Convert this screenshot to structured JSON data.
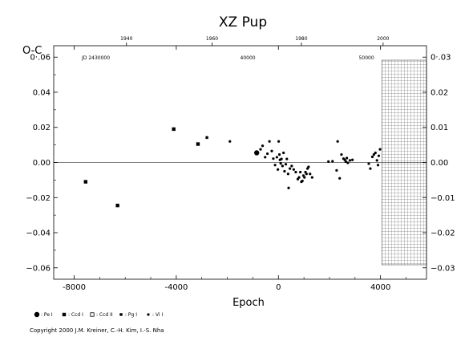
{
  "chart_data": {
    "type": "scatter",
    "title": "XZ  Pup",
    "xlabel": "Epoch",
    "ylabel": "O-C",
    "xlim": [
      -8800,
      5800
    ],
    "ylim": [
      -0.0665,
      0.0665
    ],
    "x_ticks": [
      -8000,
      -4000,
      0,
      4000
    ],
    "x_tick_labels": [
      "-8000",
      "-4000",
      "0",
      "4000"
    ],
    "y_ticks": [
      -0.06,
      -0.04,
      -0.02,
      0.0,
      0.02,
      0.04,
      0.06
    ],
    "y_tick_labels": [
      "−0.06",
      "−0.04",
      "−0.02",
      "0.00",
      "0.02",
      "0.04",
      "0·.06"
    ],
    "y2_ticks": [
      -0.03,
      -0.02,
      -0.01,
      0.0,
      0.01,
      0.02,
      0.03
    ],
    "y2_tick_labels": [
      "−0.03",
      "−0.02",
      "−0.01",
      "0.00",
      "0.01",
      "0.02",
      "0·.03"
    ],
    "top_year_ticks": [
      {
        "epoch": -5950,
        "label": "1940"
      },
      {
        "epoch": -2600,
        "label": "1960"
      },
      {
        "epoch": 900,
        "label": "1980"
      },
      {
        "epoch": 4100,
        "label": "2000"
      }
    ],
    "jd_ticks": [
      {
        "epoch": -7150,
        "label": "JD 2430000"
      },
      {
        "epoch": -1200,
        "label": "40000"
      },
      {
        "epoch": 3450,
        "label": "50000"
      }
    ],
    "hatched_region": [
      4050,
      5800
    ],
    "legend": [
      {
        "symbol": "big-circle",
        "label": ": Pe I"
      },
      {
        "symbol": "square",
        "label": ": Ccd I"
      },
      {
        "symbol": "open-square",
        "label": ": Ccd II"
      },
      {
        "symbol": "small-square",
        "label": ": Pg I"
      },
      {
        "symbol": "small-circle",
        "label": ": Vi I"
      }
    ],
    "series": [
      {
        "name": "Pe I",
        "symbol": "big-circle",
        "points": [
          [
            -850,
            0.0055
          ]
        ]
      },
      {
        "name": "Ccd I",
        "symbol": "square",
        "points": [
          [
            -7550,
            -0.011
          ],
          [
            -6300,
            -0.0245
          ],
          [
            -4100,
            0.019
          ],
          [
            -3150,
            0.0105
          ]
        ]
      },
      {
        "name": "Pg I",
        "symbol": "small-square",
        "points": [
          [
            -2800,
            0.0142
          ]
        ]
      },
      {
        "name": "Vi I",
        "symbol": "small-circle",
        "points": [
          [
            -1900,
            0.012
          ],
          [
            -700,
            0.0075
          ],
          [
            -620,
            0.0095
          ],
          [
            -520,
            0.003
          ],
          [
            -430,
            0.005
          ],
          [
            -350,
            0.012
          ],
          [
            -260,
            0.0065
          ],
          [
            -200,
            0.0022
          ],
          [
            -130,
            -0.0015
          ],
          [
            -60,
            0.003
          ],
          [
            -20,
            -0.004
          ],
          [
            10,
            0.012
          ],
          [
            40,
            0.0045
          ],
          [
            60,
            0.0015
          ],
          [
            90,
            -0.0005
          ],
          [
            120,
            0.002
          ],
          [
            160,
            -0.002
          ],
          [
            200,
            0.0055
          ],
          [
            240,
            -0.005
          ],
          [
            290,
            -0.001
          ],
          [
            330,
            0.002
          ],
          [
            380,
            -0.0065
          ],
          [
            400,
            -0.0145
          ],
          [
            450,
            -0.0035
          ],
          [
            520,
            -0.002
          ],
          [
            600,
            -0.004
          ],
          [
            680,
            -0.0055
          ],
          [
            760,
            -0.0095
          ],
          [
            810,
            -0.0085
          ],
          [
            860,
            -0.0055
          ],
          [
            900,
            -0.011
          ],
          [
            940,
            -0.0105
          ],
          [
            980,
            -0.0075
          ],
          [
            1020,
            -0.0085
          ],
          [
            1060,
            -0.0055
          ],
          [
            1100,
            -0.0065
          ],
          [
            1140,
            -0.0035
          ],
          [
            1180,
            -0.0025
          ],
          [
            1240,
            -0.0065
          ],
          [
            1320,
            -0.0085
          ],
          [
            1960,
            0.0005
          ],
          [
            2120,
            0.0007
          ],
          [
            2280,
            -0.0045
          ],
          [
            2320,
            0.012
          ],
          [
            2400,
            -0.009
          ],
          [
            2470,
            0.0045
          ],
          [
            2550,
            0.0022
          ],
          [
            2600,
            0.0015
          ],
          [
            2640,
            0.0005
          ],
          [
            2680,
            0.0025
          ],
          [
            2720,
            -0.0002
          ],
          [
            2800,
            0.0012
          ],
          [
            2900,
            0.0015
          ],
          [
            3540,
            -0.0007
          ],
          [
            3600,
            -0.0035
          ],
          [
            3680,
            0.0032
          ],
          [
            3740,
            0.0045
          ],
          [
            3800,
            0.0055
          ],
          [
            3860,
            0.0012
          ],
          [
            3900,
            -0.0015
          ],
          [
            3930,
            0.0038
          ],
          [
            3980,
            0.0075
          ]
        ]
      }
    ]
  },
  "copyright": "Copyright 2000 J.M. Kreiner, C.-H. Kim, I.-S. Nha"
}
